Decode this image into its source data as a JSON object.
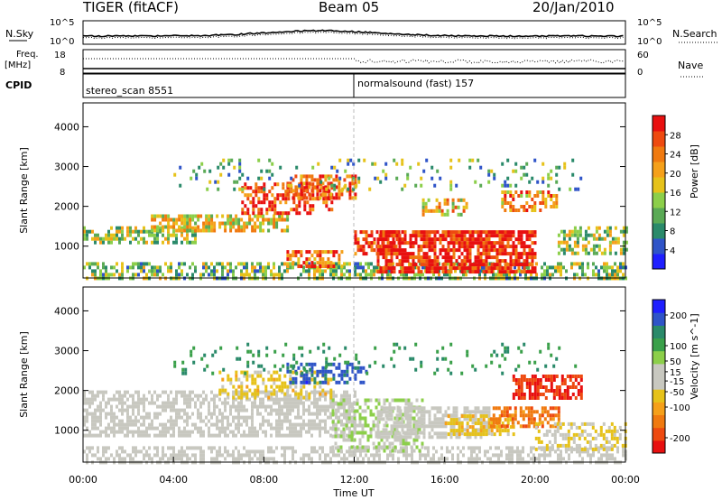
{
  "header": {
    "title_left": "TIGER (fitACF)",
    "title_center": "Beam 05",
    "title_right": "20/Jan/2010"
  },
  "top_panels": {
    "nsky_label": "N.Sky",
    "nsky_ticks": [
      "10^5",
      "10^0"
    ],
    "nsearch_label": "N.Search",
    "nsearch_ticks": [
      "10^5",
      "10^0"
    ],
    "freq_label": "Freq.",
    "freq_unit": "[MHz]",
    "freq_ticks": [
      "18",
      "8"
    ],
    "nave_label": "Nave",
    "nave_ticks": [
      "60",
      "0"
    ],
    "cpid_label": "CPID",
    "cpid_segments": [
      {
        "start_hour": 0,
        "label": "stereo_scan 8551"
      },
      {
        "start_hour": 12,
        "label": "normalsound (fast) 157"
      }
    ]
  },
  "chart_data": [
    {
      "type": "heatmap",
      "name": "power",
      "xlabel": "",
      "ylabel": "Slant Range [km]",
      "x_range_hours": [
        0,
        24
      ],
      "ylim": [
        200,
        4600
      ],
      "y_ticks": [
        1000,
        2000,
        3000,
        4000
      ],
      "colorbar": {
        "label": "Power [dB]",
        "ticks": [
          4,
          8,
          12,
          16,
          20,
          24,
          28
        ],
        "range": [
          0,
          32
        ],
        "colors": [
          "#1f1fff",
          "#2f54c8",
          "#2a8a6a",
          "#5aaa55",
          "#8ccf4a",
          "#e6c21a",
          "#f5a01a",
          "#f07a10",
          "#ee4a10",
          "#e81010"
        ]
      },
      "features": [
        {
          "t0": 0.0,
          "t1": 24.0,
          "r0": 220,
          "r1": 600,
          "level": 0.4,
          "density": 0.55
        },
        {
          "t0": 0.0,
          "t1": 5.0,
          "r0": 1100,
          "r1": 1500,
          "level": 0.45,
          "density": 0.6
        },
        {
          "t0": 3.0,
          "t1": 9.0,
          "r0": 1400,
          "r1": 1800,
          "level": 0.55,
          "density": 0.65
        },
        {
          "t0": 7.0,
          "t1": 11.0,
          "r0": 1800,
          "r1": 2600,
          "level": 0.85,
          "density": 0.55
        },
        {
          "t0": 9.0,
          "t1": 12.0,
          "r0": 2200,
          "r1": 2800,
          "level": 0.8,
          "density": 0.55
        },
        {
          "t0": 9.0,
          "t1": 11.5,
          "r0": 500,
          "r1": 900,
          "level": 0.8,
          "density": 0.6
        },
        {
          "t0": 12.0,
          "t1": 14.0,
          "r0": 800,
          "r1": 1400,
          "level": 0.9,
          "density": 0.6
        },
        {
          "t0": 13.0,
          "t1": 20.0,
          "r0": 400,
          "r1": 1400,
          "level": 0.95,
          "density": 0.75
        },
        {
          "t0": 15.0,
          "t1": 17.0,
          "r0": 1800,
          "r1": 2200,
          "level": 0.6,
          "density": 0.5
        },
        {
          "t0": 18.5,
          "t1": 21.0,
          "r0": 1900,
          "r1": 2400,
          "level": 0.7,
          "density": 0.55
        },
        {
          "t0": 21.0,
          "t1": 24.0,
          "r0": 800,
          "r1": 1500,
          "level": 0.45,
          "density": 0.55
        },
        {
          "t0": 4.0,
          "t1": 22.0,
          "r0": 2400,
          "r1": 3200,
          "level": 0.35,
          "density": 0.12
        }
      ]
    },
    {
      "type": "heatmap",
      "name": "velocity",
      "xlabel": "Time UT",
      "ylabel": "Slant Range [km]",
      "x_ticks": [
        "00:00",
        "04:00",
        "08:00",
        "12:00",
        "16:00",
        "20:00",
        "00:00"
      ],
      "x_range_hours": [
        0,
        24
      ],
      "ylim": [
        200,
        4600
      ],
      "y_ticks": [
        1000,
        2000,
        3000,
        4000
      ],
      "colorbar": {
        "label": "Velocity [m s^-1]",
        "ticks": [
          200,
          100,
          50,
          15,
          -15,
          -50,
          -100,
          -200
        ],
        "range": [
          -250,
          250
        ],
        "colors": [
          "#e81010",
          "#ee4a10",
          "#f07a10",
          "#f5a01a",
          "#e6c21a",
          "#c8c8c0",
          "#c8c8c0",
          "#8ccf4a",
          "#3aa04a",
          "#2a8a6a",
          "#2f54c8",
          "#1f1fff"
        ]
      },
      "features": [
        {
          "t0": 0.0,
          "t1": 24.0,
          "r0": 220,
          "r1": 600,
          "value": 0,
          "density": 0.55
        },
        {
          "t0": 0.0,
          "t1": 12.0,
          "r0": 900,
          "r1": 2000,
          "value": 0,
          "density": 0.6
        },
        {
          "t0": 6.0,
          "t1": 11.0,
          "r0": 1800,
          "r1": 2500,
          "value": -60,
          "density": 0.4
        },
        {
          "t0": 9.0,
          "t1": 12.5,
          "r0": 2200,
          "r1": 2700,
          "value": 180,
          "density": 0.5
        },
        {
          "t0": 11.0,
          "t1": 15.0,
          "r0": 500,
          "r1": 1800,
          "value": 40,
          "density": 0.5
        },
        {
          "t0": 13.0,
          "t1": 18.0,
          "r0": 800,
          "r1": 1600,
          "value": 0,
          "density": 0.65
        },
        {
          "t0": 16.0,
          "t1": 19.0,
          "r0": 900,
          "r1": 1400,
          "value": -70,
          "density": 0.6
        },
        {
          "t0": 18.0,
          "t1": 21.0,
          "r0": 1100,
          "r1": 1600,
          "value": -150,
          "density": 0.6
        },
        {
          "t0": 19.0,
          "t1": 22.0,
          "r0": 1800,
          "r1": 2400,
          "value": -210,
          "density": 0.65
        },
        {
          "t0": 20.0,
          "t1": 24.0,
          "r0": 500,
          "r1": 1200,
          "value": -40,
          "density": 0.45
        },
        {
          "t0": 4.0,
          "t1": 22.0,
          "r0": 2400,
          "r1": 3200,
          "value": 120,
          "density": 0.1
        }
      ]
    }
  ]
}
